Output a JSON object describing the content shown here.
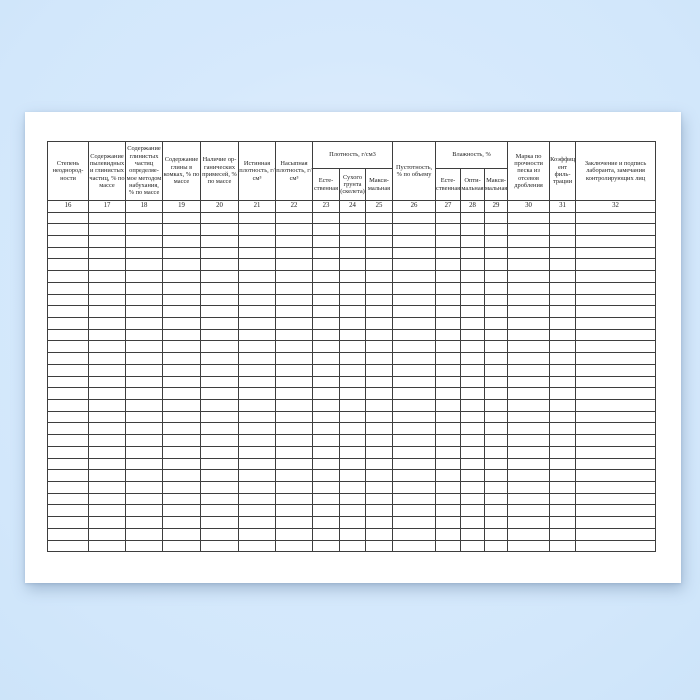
{
  "page": {
    "background_color": "#d2e7fb",
    "paper_color": "#ffffff",
    "line_color": "#3e3e3e",
    "text_color": "#1c1c1c"
  },
  "table": {
    "groups": {
      "density": "Плотность, г/см3",
      "moisture": "Влажность, %"
    },
    "headers": {
      "c16": "Степень неоднород-ности",
      "c17": "Содержание пылевидных и глинистых частиц, % по массе",
      "c18": "Содержание глинистых частиц определяе-мое методом набухания, % по массе",
      "c19": "Содержание глины в комках, % по массе",
      "c20": "Наличие ор-ганических примесей, % по массе",
      "c21": "Истинная плотность, г/см³",
      "c22": "Насыпная плотность, г/см³",
      "c23": "Есте-ственная",
      "c24": "Сухого грунта (скелета)",
      "c25": "Макси-мальная",
      "c26": "Пустотность, % по объему",
      "c27": "Есте-ственная",
      "c28": "Опти-мальная",
      "c29": "Макси-мальная",
      "c30": "Марка по прочности песка из отсевов дробления",
      "c31": "Коэффици-ент филь-трации",
      "c32": "Заключение и подпись лаборанта, замечания контролирующих лиц"
    },
    "numbers": [
      "16",
      "17",
      "18",
      "19",
      "20",
      "21",
      "22",
      "23",
      "24",
      "25",
      "26",
      "27",
      "28",
      "29",
      "30",
      "31",
      "32"
    ],
    "blank_row_count": 29
  }
}
